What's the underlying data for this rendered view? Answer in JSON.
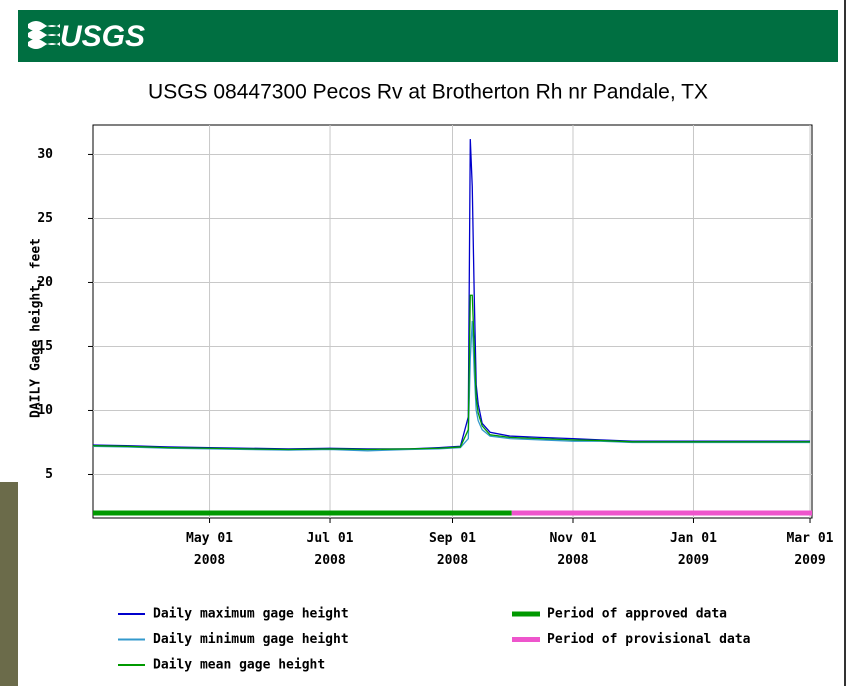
{
  "header": {
    "logo": "USGS"
  },
  "chart_data": {
    "type": "line",
    "title": "USGS 08447300 Pecos Rv at Brotherton Rh nr Pandale, TX",
    "y_label": "DAILY Gage height, feet",
    "x": [
      "2008-03-03",
      "2008-03-20",
      "2008-04-10",
      "2008-05-01",
      "2008-05-20",
      "2008-06-10",
      "2008-07-01",
      "2008-07-20",
      "2008-08-10",
      "2008-08-25",
      "2008-09-05",
      "2008-09-09",
      "2008-09-10",
      "2008-09-11",
      "2008-09-12",
      "2008-09-13",
      "2008-09-14",
      "2008-09-16",
      "2008-09-20",
      "2008-09-30",
      "2008-10-15",
      "2008-11-01",
      "2008-11-15",
      "2008-12-01",
      "2009-01-01",
      "2009-02-01",
      "2009-03-01"
    ],
    "series": [
      {
        "name": "Daily maximum gage height",
        "color": "#0000cc",
        "values": [
          7.3,
          7.25,
          7.15,
          7.1,
          7.05,
          7.0,
          7.05,
          7.0,
          7.0,
          7.1,
          7.2,
          9.5,
          31.2,
          27.5,
          19,
          12,
          10.5,
          9.0,
          8.3,
          8.0,
          7.9,
          7.8,
          7.7,
          7.6,
          7.6,
          7.6,
          7.6
        ]
      },
      {
        "name": "Daily minimum gage height",
        "color": "#3399cc",
        "values": [
          7.2,
          7.15,
          7.05,
          7.0,
          6.95,
          6.9,
          6.95,
          6.85,
          6.95,
          7.0,
          7.1,
          7.8,
          14,
          17,
          13,
          10,
          9.2,
          8.5,
          8.0,
          7.8,
          7.7,
          7.6,
          7.6,
          7.5,
          7.5,
          7.5,
          7.5
        ]
      },
      {
        "name": "Daily mean gage height",
        "color": "#009900",
        "values": [
          7.25,
          7.2,
          7.1,
          7.05,
          7.0,
          6.95,
          7.0,
          6.95,
          7.0,
          7.05,
          7.15,
          8.5,
          19,
          19,
          15,
          11,
          9.8,
          8.8,
          8.1,
          7.9,
          7.8,
          7.7,
          7.65,
          7.55,
          7.55,
          7.55,
          7.55
        ]
      }
    ],
    "periods": [
      {
        "name": "Period of approved data",
        "color": "#009900",
        "start": "2008-03-03",
        "end": "2008-10-01"
      },
      {
        "name": "Period of provisional data",
        "color": "#ee55cc",
        "start": "2008-10-01",
        "end": "2009-03-02"
      }
    ],
    "xlim": [
      "2008-03-03",
      "2009-03-02"
    ],
    "xticks": [
      {
        "value": "2008-05-01",
        "label": "May 01 2008"
      },
      {
        "value": "2008-07-01",
        "label": "Jul 01 2008"
      },
      {
        "value": "2008-09-01",
        "label": "Sep 01 2008"
      },
      {
        "value": "2008-11-01",
        "label": "Nov 01 2008"
      },
      {
        "value": "2009-01-01",
        "label": "Jan 01 2009"
      },
      {
        "value": "2009-03-01",
        "label": "Mar 01 2009"
      }
    ],
    "ylim": [
      1.6,
      32.3
    ],
    "yticks": [
      5,
      10,
      15,
      20,
      25,
      30
    ],
    "grid": true
  }
}
